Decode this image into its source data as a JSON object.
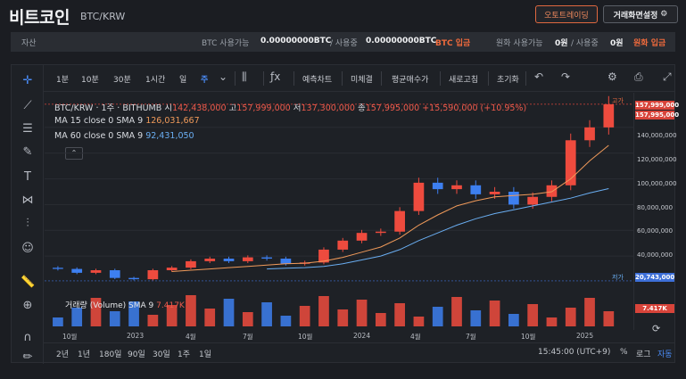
{
  "header": {
    "title": "비트코인",
    "pair": "BTC/KRW",
    "auto_trade_label": "오토트레이딩",
    "settings_label": "거래화면설정"
  },
  "assets": {
    "label": "자산",
    "btc_available_label": "BTC 사용가능",
    "btc_available_value": "0.00000000BTC",
    "btc_in_use_label": "/ 사용중",
    "btc_in_use_value": "0.00000000BTC",
    "btc_deposit": "BTC 입금",
    "krw_available_label": "원화 사용가능",
    "krw_available_value": "0원",
    "krw_in_use_label": "/ 사용중",
    "krw_in_use_value": "0원",
    "krw_deposit": "원화 입금"
  },
  "toolbar": {
    "intervals": [
      "1분",
      "10분",
      "30분",
      "1시간",
      "일",
      "주"
    ],
    "active_interval": "주",
    "items": [
      "예측차트",
      "미체결",
      "평균매수가",
      "새로고침",
      "초기화"
    ]
  },
  "legend": {
    "symbol": "BTC/KRW · 1주 · BITHUMB",
    "open_label": "시",
    "open": "142,438,000",
    "high_label": "고",
    "high": "157,999,000",
    "low_label": "저",
    "low": "137,300,000",
    "close_label": "종",
    "close": "157,995,000",
    "change": "+15,590,000 (+10.95%)",
    "ma15_label": "MA 15 close 0 SMA 9",
    "ma15_value": "126,031,667",
    "ma60_label": "MA 60 close 0 SMA 9",
    "ma60_value": "92,431,050",
    "high_marker": "고가",
    "low_marker": "저가"
  },
  "volume": {
    "label": "거래량 (Volume) SMA 9",
    "value": "7.417K"
  },
  "y_axis": {
    "ticks": [
      "140,000,000",
      "120,000,000",
      "100,000,000",
      "80,000,000",
      "60,000,000",
      "40,000,000"
    ],
    "tag_high": "157,999,000",
    "tag_close": "157,995,000",
    "tag_low": "20,743,000",
    "tag_volume": "7.417K"
  },
  "x_axis": {
    "ticks": [
      "10월",
      "2023",
      "4월",
      "7월",
      "10월",
      "2024",
      "4월",
      "7월",
      "10월",
      "2025"
    ]
  },
  "bottom_bar": {
    "ranges": [
      "2년",
      "1년",
      "180일",
      "90일",
      "30일",
      "1주",
      "1일"
    ],
    "time": "15:45:00 (UTC+9)",
    "percent": "%",
    "log": "로그",
    "auto": "자동"
  },
  "chart_data": {
    "type": "candlestick",
    "x": [
      "2022-08",
      "2022-09",
      "2022-10",
      "2022-11",
      "2022-12",
      "2023-01",
      "2023-02",
      "2023-03",
      "2023-04",
      "2023-05",
      "2023-06",
      "2023-07",
      "2023-08",
      "2023-09",
      "2023-10",
      "2023-11",
      "2023-12",
      "2024-01",
      "2024-02",
      "2024-03",
      "2024-04",
      "2024-05",
      "2024-06",
      "2024-07",
      "2024-08",
      "2024-09",
      "2024-10",
      "2024-11",
      "2024-12",
      "2025-01"
    ],
    "close": [
      30000000,
      27000000,
      29000000,
      23000000,
      22000000,
      29000000,
      31000000,
      36000000,
      38000000,
      36000000,
      39000000,
      38000000,
      34000000,
      35000000,
      45000000,
      52000000,
      58000000,
      59000000,
      75000000,
      97000000,
      92000000,
      95000000,
      88000000,
      90000000,
      80000000,
      86000000,
      95000000,
      130000000,
      140000000,
      157995000
    ],
    "ma15": [
      null,
      null,
      null,
      null,
      null,
      null,
      28000000,
      29000000,
      30000000,
      31000000,
      32000000,
      33000000,
      34000000,
      34500000,
      36000000,
      39000000,
      43000000,
      47000000,
      54000000,
      64000000,
      72000000,
      79000000,
      83000000,
      86000000,
      87000000,
      88000000,
      90000000,
      100000000,
      114000000,
      126031667
    ],
    "ma60": [
      null,
      null,
      null,
      null,
      null,
      null,
      null,
      null,
      null,
      null,
      null,
      30000000,
      30500000,
      31000000,
      32000000,
      34000000,
      37000000,
      40000000,
      45000000,
      52000000,
      58000000,
      64000000,
      69000000,
      73000000,
      76000000,
      79000000,
      82000000,
      85000000,
      89000000,
      92431050
    ],
    "ylim": [
      20000000,
      160000000
    ],
    "series_colors": {
      "up": "#ee4b3e",
      "down": "#3d7ff0",
      "ma15": "#f09a5a",
      "ma60": "#6aaef2"
    }
  }
}
